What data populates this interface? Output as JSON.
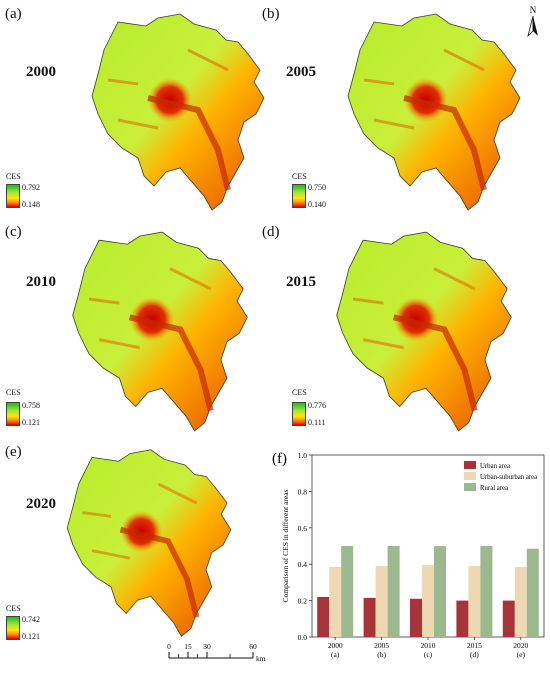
{
  "panels": [
    {
      "letter": "(a)",
      "year": "2000",
      "legend": {
        "title": "CES",
        "max": "0.792",
        "min": "0.148"
      }
    },
    {
      "letter": "(b)",
      "year": "2005",
      "legend": {
        "title": "CES",
        "max": "0.750",
        "min": "0.140"
      }
    },
    {
      "letter": "(c)",
      "year": "2010",
      "legend": {
        "title": "CES",
        "max": "0.758",
        "min": "0.121"
      }
    },
    {
      "letter": "(d)",
      "year": "2015",
      "legend": {
        "title": "CES",
        "max": "0.776",
        "min": "0.111"
      }
    },
    {
      "letter": "(e)",
      "year": "2020",
      "legend": {
        "title": "CES",
        "max": "0.742",
        "min": "0.121"
      }
    }
  ],
  "north_label": "N",
  "scale": {
    "ticks": [
      "0",
      "15",
      "30",
      "60"
    ],
    "unit": "km"
  },
  "colors": {
    "high": "#16c21a",
    "mid": "#ffe900",
    "low": "#e30000",
    "urban": "#a8343a",
    "suburban": "#eed8b4",
    "rural": "#9bb88f"
  },
  "chart_data": {
    "panel_letter": "(f)",
    "type": "bar",
    "categories": [
      "2000",
      "2005",
      "2010",
      "2015",
      "2020"
    ],
    "category_sublabels": [
      "(a)",
      "(b)",
      "(c)",
      "(d)",
      "(e)"
    ],
    "series": [
      {
        "name": "Urban area",
        "color": "#a8343a",
        "values": [
          0.22,
          0.215,
          0.21,
          0.2,
          0.2
        ]
      },
      {
        "name": "Urban-suburban area",
        "color": "#eed8b4",
        "values": [
          0.385,
          0.39,
          0.395,
          0.39,
          0.385
        ]
      },
      {
        "name": "Rural area",
        "color": "#9bb88f",
        "values": [
          0.5,
          0.5,
          0.5,
          0.5,
          0.485
        ]
      }
    ],
    "ylabel": "Comparison of CES in different areas",
    "ylim": [
      0,
      1.0
    ],
    "yticks": [
      "0.0",
      "0.2",
      "0.4",
      "0.6",
      "0.8",
      "1.0"
    ],
    "legend_position": "top-right"
  }
}
